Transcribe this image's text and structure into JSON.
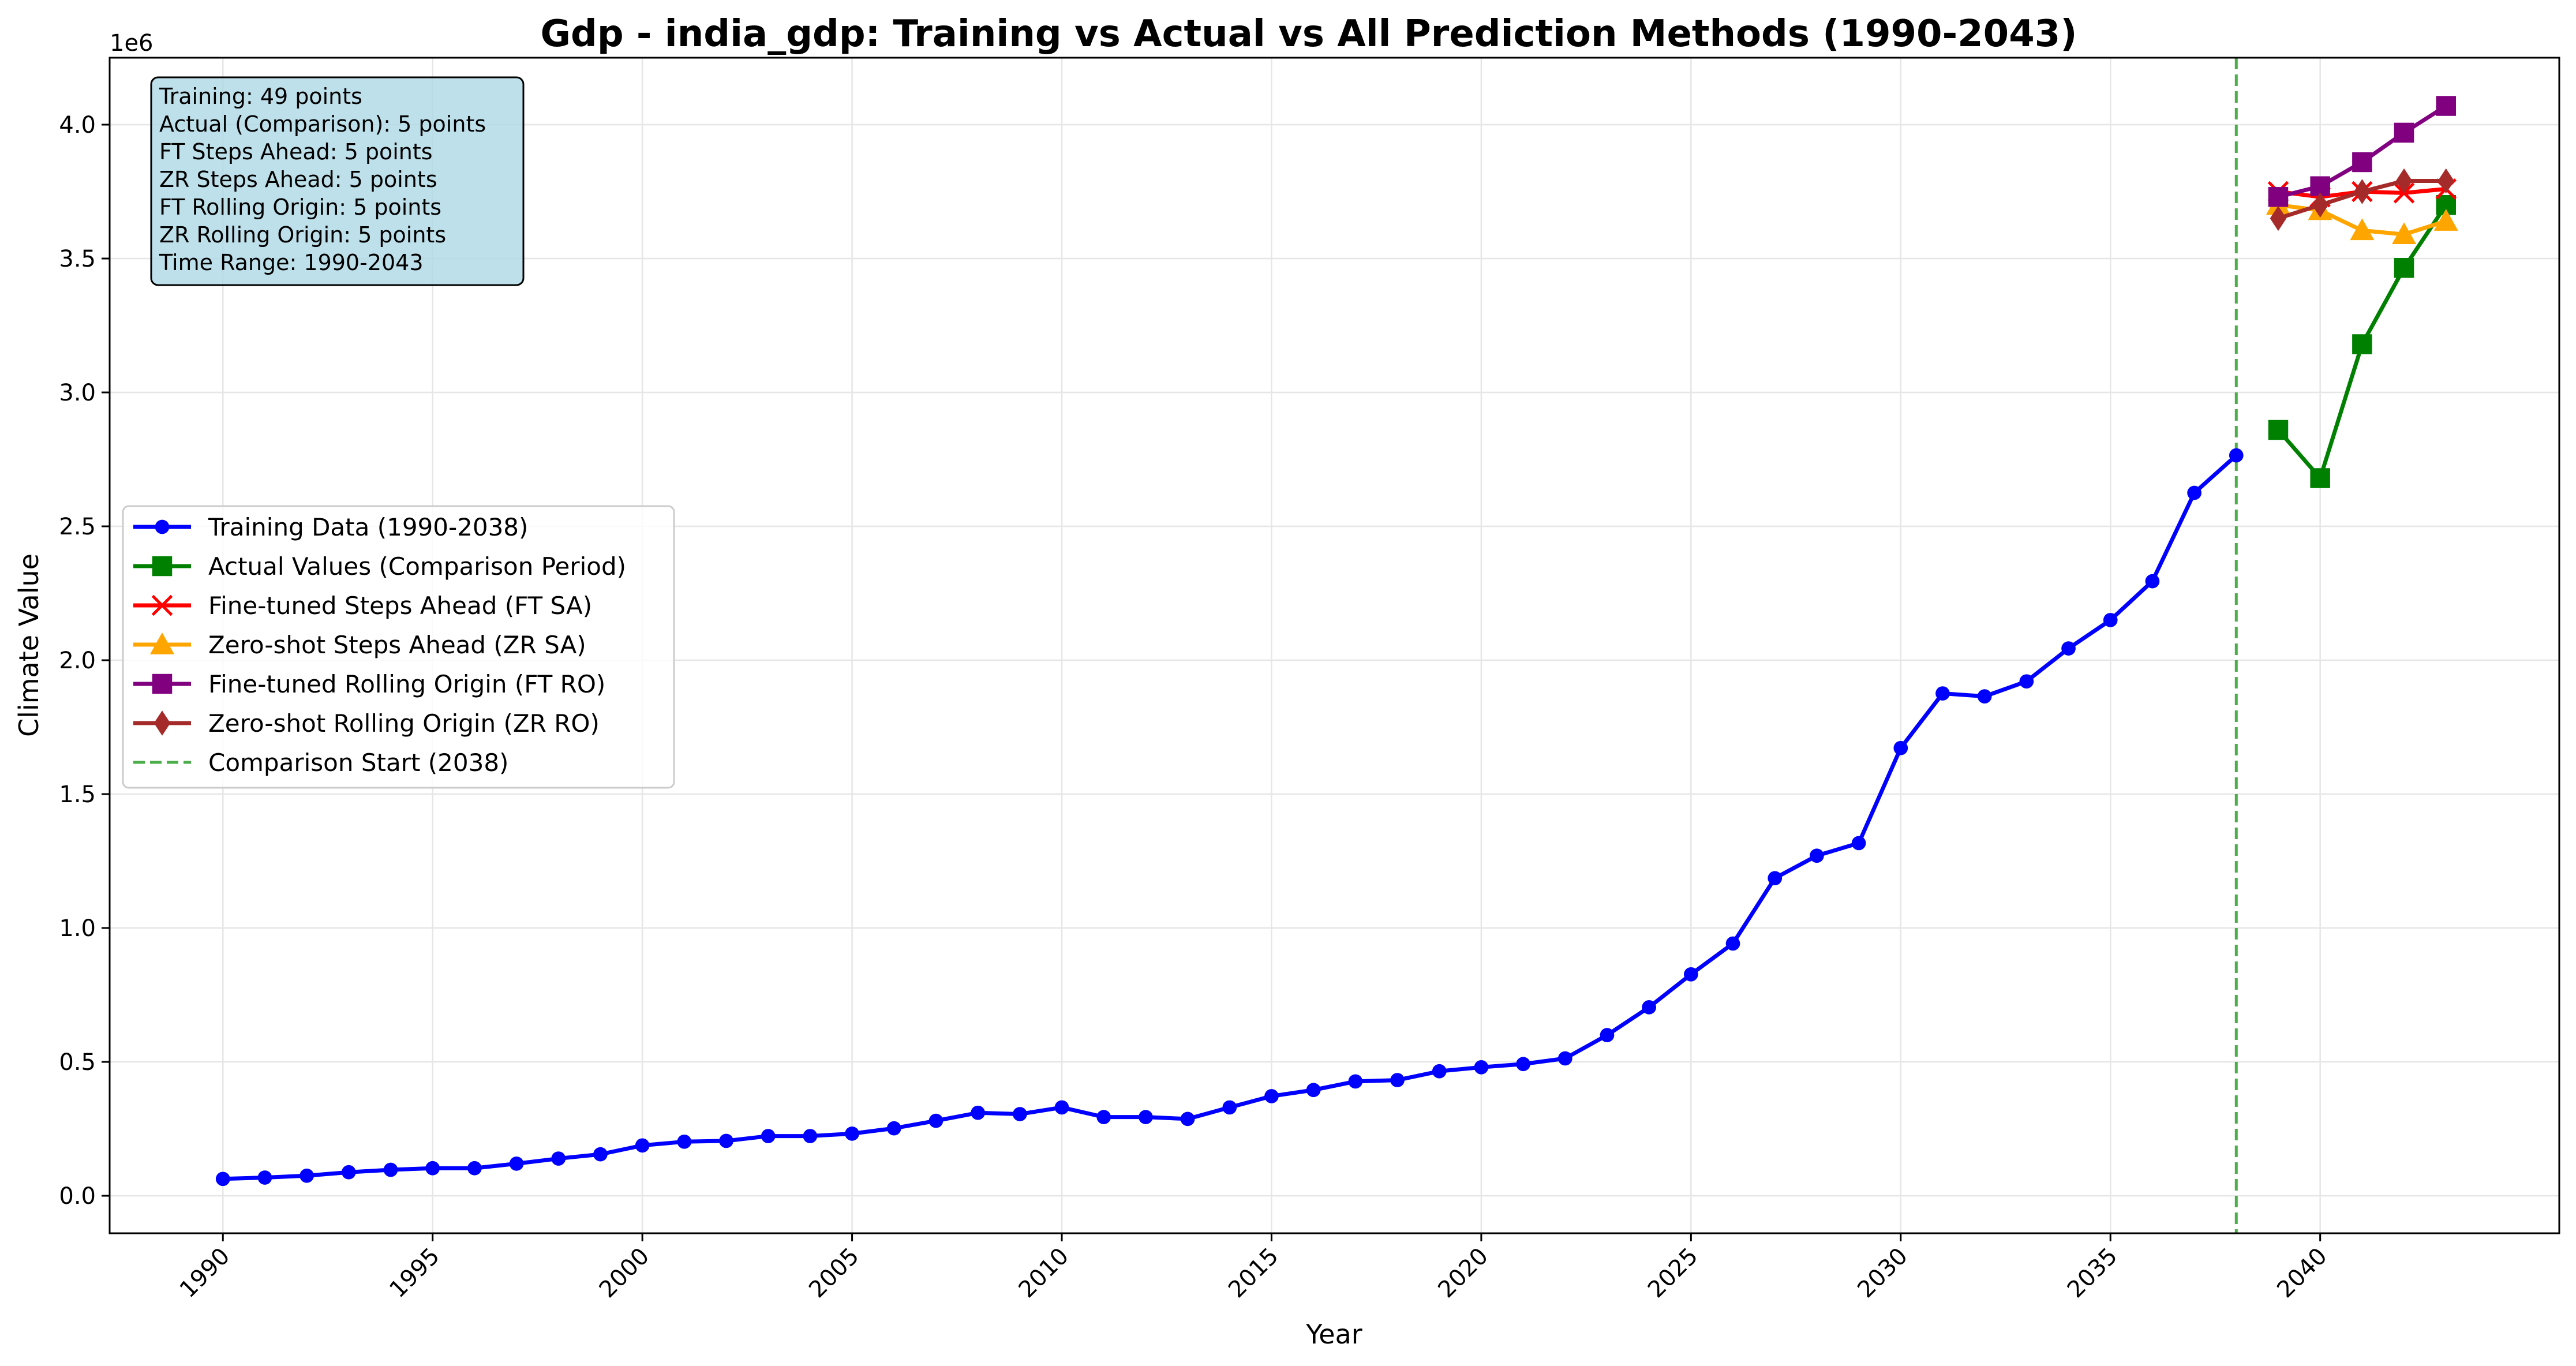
{
  "chart_data": {
    "type": "line",
    "title": "Gdp - india_gdp: Training vs Actual vs All Prediction Methods (1990-2043)",
    "xlabel": "Year",
    "ylabel": "Climate Value",
    "y_offset_label": "1e6",
    "xlim": [
      1987.3,
      2045.7
    ],
    "ylim": [
      -140000,
      4250000
    ],
    "x_ticks": [
      1990,
      1995,
      2000,
      2005,
      2010,
      2015,
      2020,
      2025,
      2030,
      2035,
      2040
    ],
    "x_tick_labels": [
      "1990",
      "1995",
      "2000",
      "2005",
      "2010",
      "2015",
      "2020",
      "2025",
      "2030",
      "2035",
      "2040"
    ],
    "y_ticks": [
      0,
      500000,
      1000000,
      1500000,
      2000000,
      2500000,
      3000000,
      3500000,
      4000000
    ],
    "y_tick_labels": [
      "0.0",
      "0.5",
      "1.0",
      "1.5",
      "2.0",
      "2.5",
      "3.0",
      "3.5",
      "4.0"
    ],
    "grid": true,
    "legend_position": "center-left",
    "vline": {
      "x": 2038,
      "label": "Comparison Start (2038)",
      "color": "#2ca02c"
    },
    "series": [
      {
        "name": "Training Data (1990-2038)",
        "color": "#0000ff",
        "marker": "circle",
        "x": [
          1990,
          1991,
          1992,
          1993,
          1994,
          1995,
          1996,
          1997,
          1998,
          1999,
          2000,
          2001,
          2002,
          2003,
          2004,
          2005,
          2006,
          2007,
          2008,
          2009,
          2010,
          2011,
          2012,
          2013,
          2014,
          2015,
          2016,
          2017,
          2018,
          2019,
          2020,
          2021,
          2022,
          2023,
          2024,
          2025,
          2026,
          2027,
          2028,
          2029,
          2030,
          2031,
          2032,
          2033,
          2034,
          2035,
          2036,
          2037,
          2038
        ],
        "y": [
          63000,
          68000,
          75000,
          88000,
          97000,
          103000,
          103000,
          120000,
          139000,
          155000,
          188000,
          202000,
          205000,
          223000,
          223000,
          232000,
          252000,
          280000,
          310000,
          305000,
          330000,
          294000,
          294000,
          287000,
          330000,
          372000,
          395000,
          427000,
          432000,
          465000,
          480000,
          492000,
          513000,
          600000,
          704000,
          827000,
          942000,
          1186000,
          1270000,
          1317000,
          1672000,
          1876000,
          1865000,
          1921000,
          2044000,
          2150000,
          2295000,
          2625000,
          2765000
        ]
      },
      {
        "name": "Actual Values (Comparison Period)",
        "color": "#008000",
        "marker": "square",
        "x": [
          2039,
          2040,
          2041,
          2042,
          2043
        ],
        "y": [
          2860000,
          2680000,
          3180000,
          3465000,
          3700000
        ]
      },
      {
        "name": "Fine-tuned Steps Ahead (FT SA)",
        "color": "#ff0000",
        "marker": "x",
        "x": [
          2039,
          2040,
          2041,
          2042,
          2043
        ],
        "y": [
          3750000,
          3730000,
          3750000,
          3745000,
          3760000
        ]
      },
      {
        "name": "Zero-shot Steps Ahead (ZR SA)",
        "color": "#ffa500",
        "marker": "triangle",
        "x": [
          2039,
          2040,
          2041,
          2042,
          2043
        ],
        "y": [
          3700000,
          3680000,
          3605000,
          3590000,
          3640000
        ]
      },
      {
        "name": "Fine-tuned Rolling Origin (FT RO)",
        "color": "#800080",
        "marker": "square",
        "x": [
          2039,
          2040,
          2041,
          2042,
          2043
        ],
        "y": [
          3730000,
          3770000,
          3860000,
          3970000,
          4070000
        ]
      },
      {
        "name": "Zero-shot Rolling Origin (ZR RO)",
        "color": "#a52a2a",
        "marker": "diamond",
        "x": [
          2039,
          2040,
          2041,
          2042,
          2043
        ],
        "y": [
          3650000,
          3700000,
          3750000,
          3790000,
          3790000
        ]
      }
    ],
    "info_box": [
      "Training: 49 points",
      "Actual (Comparison): 5 points",
      "FT Steps Ahead: 5 points",
      "ZR Steps Ahead: 5 points",
      "FT Rolling Origin: 5 points",
      "ZR Rolling Origin: 5 points",
      "Time Range: 1990-2043"
    ]
  }
}
